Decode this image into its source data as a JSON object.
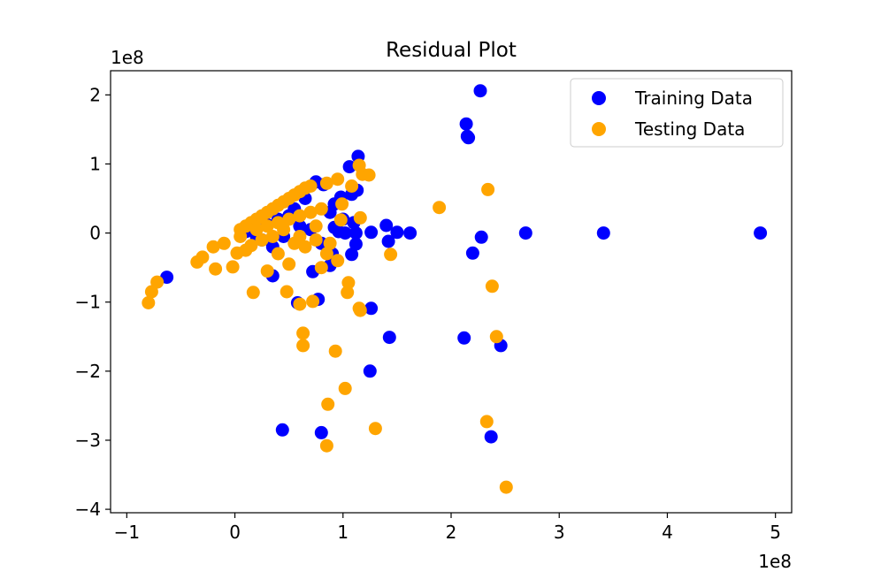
{
  "chart_data": {
    "type": "scatter",
    "title": "Residual Plot",
    "xlabel": "",
    "ylabel": "",
    "x_offset_label": "1e8",
    "y_offset_label": "1e8",
    "xlim": [
      -1.15,
      5.15
    ],
    "ylim": [
      -4.05,
      2.35
    ],
    "x_ticks": [
      -1,
      0,
      1,
      2,
      3,
      4,
      5
    ],
    "x_tick_labels": [
      "−1",
      "0",
      "1",
      "2",
      "3",
      "4",
      "5"
    ],
    "y_ticks": [
      -4,
      -3,
      -2,
      -1,
      0,
      1,
      2
    ],
    "y_tick_labels": [
      "−4",
      "−3",
      "−2",
      "−1",
      "0",
      "1",
      "2"
    ],
    "grid": false,
    "legend_position": "top-right",
    "series": [
      {
        "name": "Training Data",
        "color": "#0000ff",
        "points": [
          [
            2.27,
            2.06
          ],
          [
            2.14,
            1.58
          ],
          [
            2.15,
            1.4
          ],
          [
            2.16,
            1.38
          ],
          [
            1.14,
            1.11
          ],
          [
            1.06,
            0.96
          ],
          [
            1.13,
            0.62
          ],
          [
            1.08,
            0.56
          ],
          [
            0.98,
            0.52
          ],
          [
            0.92,
            0.42
          ],
          [
            0.88,
            0.3
          ],
          [
            1.0,
            0.2
          ],
          [
            1.1,
            0.15
          ],
          [
            0.92,
            0.08
          ],
          [
            0.96,
            0.02
          ],
          [
            1.02,
            0.0
          ],
          [
            1.12,
            0.0
          ],
          [
            1.26,
            0.01
          ],
          [
            1.4,
            0.11
          ],
          [
            1.5,
            0.01
          ],
          [
            1.62,
            0.0
          ],
          [
            2.28,
            -0.06
          ],
          [
            2.69,
            0.0
          ],
          [
            3.41,
            0.0
          ],
          [
            4.86,
            0.0
          ],
          [
            1.12,
            -0.16
          ],
          [
            1.08,
            -0.31
          ],
          [
            2.2,
            -0.29
          ],
          [
            1.42,
            -0.12
          ],
          [
            0.88,
            -0.47
          ],
          [
            0.72,
            -0.56
          ],
          [
            0.77,
            -0.96
          ],
          [
            0.58,
            -1.01
          ],
          [
            1.26,
            -1.09
          ],
          [
            -0.63,
            -0.64
          ],
          [
            0.35,
            -0.62
          ],
          [
            1.43,
            -1.51
          ],
          [
            2.12,
            -1.52
          ],
          [
            2.46,
            -1.63
          ],
          [
            1.25,
            -2.0
          ],
          [
            0.44,
            -2.85
          ],
          [
            0.8,
            -2.89
          ],
          [
            2.37,
            -2.95
          ],
          [
            0.1,
            0.02
          ],
          [
            0.2,
            -0.05
          ],
          [
            0.3,
            0.12
          ],
          [
            0.4,
            0.2
          ],
          [
            0.55,
            0.35
          ],
          [
            0.65,
            0.5
          ],
          [
            0.75,
            0.74
          ],
          [
            0.82,
            0.7
          ],
          [
            0.6,
            0.1
          ],
          [
            0.45,
            -0.05
          ],
          [
            0.35,
            -0.2
          ],
          [
            0.25,
            -0.1
          ],
          [
            0.5,
            0.25
          ],
          [
            0.7,
            0.05
          ],
          [
            0.8,
            -0.15
          ],
          [
            0.9,
            -0.3
          ],
          [
            0.15,
            0.1
          ]
        ]
      },
      {
        "name": "Testing Data",
        "color": "#ffa500",
        "points": [
          [
            1.15,
            0.98
          ],
          [
            1.18,
            0.85
          ],
          [
            1.24,
            0.84
          ],
          [
            0.95,
            0.78
          ],
          [
            1.08,
            0.68
          ],
          [
            2.34,
            0.63
          ],
          [
            0.99,
            0.42
          ],
          [
            1.16,
            0.22
          ],
          [
            1.89,
            0.37
          ],
          [
            0.98,
            0.19
          ],
          [
            1.44,
            -0.31
          ],
          [
            2.38,
            -0.77
          ],
          [
            1.05,
            -0.72
          ],
          [
            1.04,
            -0.86
          ],
          [
            1.15,
            -1.09
          ],
          [
            1.16,
            -1.12
          ],
          [
            0.72,
            -0.99
          ],
          [
            0.6,
            -1.03
          ],
          [
            0.48,
            -0.85
          ],
          [
            0.17,
            -0.86
          ],
          [
            0.63,
            -1.45
          ],
          [
            0.63,
            -1.63
          ],
          [
            0.93,
            -1.71
          ],
          [
            2.42,
            -1.5
          ],
          [
            1.02,
            -2.25
          ],
          [
            0.86,
            -2.48
          ],
          [
            2.33,
            -2.73
          ],
          [
            1.3,
            -2.83
          ],
          [
            0.85,
            -3.08
          ],
          [
            2.51,
            -3.68
          ],
          [
            -0.8,
            -1.01
          ],
          [
            -0.77,
            -0.85
          ],
          [
            -0.72,
            -0.71
          ],
          [
            -0.35,
            -0.42
          ],
          [
            -0.3,
            -0.35
          ],
          [
            -0.18,
            -0.52
          ],
          [
            -0.02,
            -0.49
          ],
          [
            0.02,
            -0.29
          ],
          [
            0.3,
            -0.55
          ],
          [
            0.8,
            -0.5
          ],
          [
            0.05,
            0.05
          ],
          [
            0.1,
            0.1
          ],
          [
            0.15,
            0.15
          ],
          [
            0.2,
            0.2
          ],
          [
            0.25,
            0.25
          ],
          [
            0.3,
            0.3
          ],
          [
            0.35,
            0.35
          ],
          [
            0.4,
            0.4
          ],
          [
            0.45,
            0.45
          ],
          [
            0.5,
            0.5
          ],
          [
            0.55,
            0.55
          ],
          [
            0.6,
            0.6
          ],
          [
            0.65,
            0.65
          ],
          [
            0.7,
            0.68
          ],
          [
            0.85,
            0.72
          ],
          [
            0.2,
            0.05
          ],
          [
            0.3,
            0.1
          ],
          [
            0.4,
            0.15
          ],
          [
            0.5,
            0.2
          ],
          [
            0.6,
            0.25
          ],
          [
            0.7,
            0.3
          ],
          [
            0.8,
            0.35
          ],
          [
            0.25,
            -0.1
          ],
          [
            0.35,
            -0.05
          ],
          [
            0.45,
            0.05
          ],
          [
            0.55,
            -0.15
          ],
          [
            0.65,
            -0.2
          ],
          [
            0.75,
            -0.1
          ],
          [
            0.85,
            -0.3
          ],
          [
            0.95,
            -0.4
          ],
          [
            -0.1,
            -0.15
          ],
          [
            -0.2,
            -0.2
          ],
          [
            0.1,
            -0.25
          ],
          [
            0.4,
            -0.3
          ],
          [
            0.5,
            -0.45
          ],
          [
            0.6,
            -0.05
          ],
          [
            0.75,
            0.1
          ],
          [
            0.88,
            -0.15
          ],
          [
            0.05,
            -0.05
          ],
          [
            0.15,
            -0.18
          ]
        ]
      }
    ]
  }
}
